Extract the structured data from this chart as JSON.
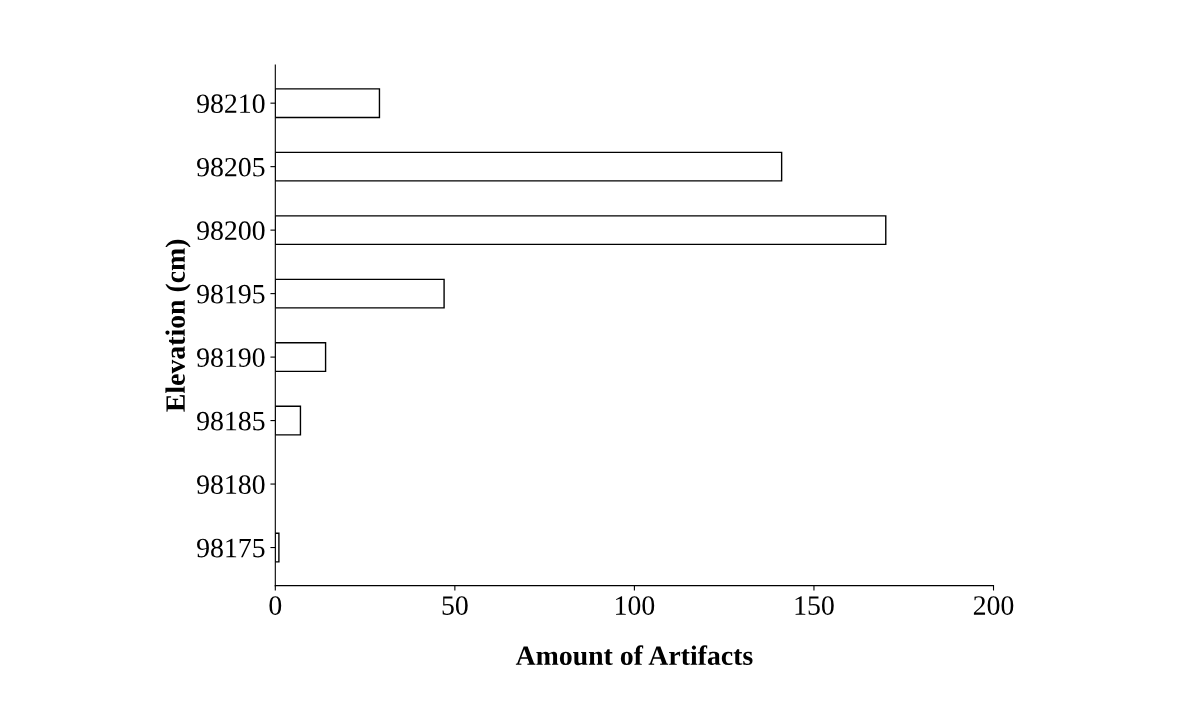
{
  "chart_data": {
    "type": "bar",
    "orientation": "horizontal",
    "xlabel": "Amount of Artifacts",
    "ylabel": "Elevation (cm)",
    "categories": [
      "98210",
      "98205",
      "98200",
      "98195",
      "98190",
      "98185",
      "98180",
      "98175"
    ],
    "values": [
      29,
      141,
      170,
      47,
      14,
      7,
      0,
      1
    ],
    "color": "#ffffff",
    "xlim": [
      0,
      200
    ],
    "xticks": [
      0,
      50,
      100,
      150,
      200
    ],
    "grid": false
  }
}
